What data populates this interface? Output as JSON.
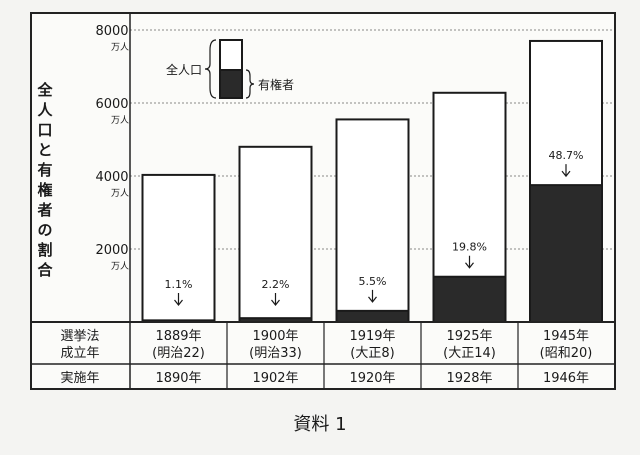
{
  "chart_data": {
    "type": "bar",
    "ylabel": "全人口と有権者の割合",
    "ylim": [
      0,
      8000
    ],
    "yticks": [
      2000,
      4000,
      6000,
      8000
    ],
    "yunit": "万人",
    "categories": [
      "1889年",
      "1900年",
      "1919年",
      "1925年",
      "1945年"
    ],
    "era": [
      "(明治22)",
      "(明治33)",
      "(大正8)",
      "(大正14)",
      "(昭和20)"
    ],
    "implementation": [
      "1890年",
      "1902年",
      "1920年",
      "1928年",
      "1946年"
    ],
    "series": [
      {
        "name": "全人口",
        "values": [
          4030,
          4800,
          5550,
          6280,
          7700
        ]
      },
      {
        "name": "有権者",
        "values": [
          45,
          105,
          305,
          1240,
          3750
        ]
      }
    ],
    "percent_labels": [
      "1.1%",
      "2.2%",
      "5.5%",
      "19.8%",
      "48.7%"
    ],
    "row_labels": {
      "law_line1": "選挙法",
      "law_line2": "成立年",
      "impl": "実施年"
    },
    "legend": {
      "total": "全人口",
      "voters": "有権者",
      "placement": "top-left"
    },
    "colors": {
      "total_fill": "#ffffff",
      "voters_fill": "#2a2a2a",
      "stroke": "#1a1a1a"
    }
  },
  "caption": "資料 1"
}
